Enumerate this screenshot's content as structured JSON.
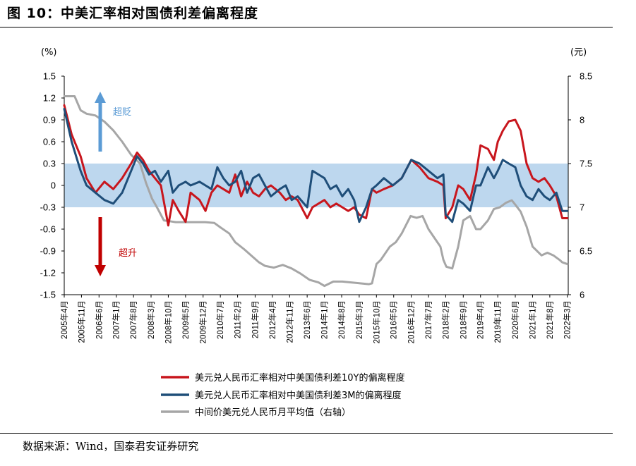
{
  "figure": {
    "title": "图 10：中美汇率相对国债利差偏离程度",
    "source": "数据来源：Wind，国泰君安证券研究"
  },
  "chart_data": {
    "type": "line",
    "y_left": {
      "unit": "(%)",
      "lim": [
        -1.5,
        1.5
      ],
      "ticks": [
        "1.5",
        "1.2",
        "0.9",
        "0.6",
        "0.3",
        "0",
        "-0.3",
        "-0.6",
        "-0.9",
        "-1.2",
        "-1.5"
      ]
    },
    "y_right": {
      "unit": "(元)",
      "lim": [
        6,
        8.5
      ],
      "ticks": [
        "8.5",
        "8",
        "7.5",
        "7",
        "6.5",
        "6"
      ]
    },
    "x_range": [
      2005.25,
      2022.2
    ],
    "x_ticks": [
      {
        "x": 2005.25,
        "label": "2005年4月"
      },
      {
        "x": 2005.83,
        "label": "2005年11月"
      },
      {
        "x": 2006.42,
        "label": "2006年6月"
      },
      {
        "x": 2007.0,
        "label": "2007年1月"
      },
      {
        "x": 2007.58,
        "label": "2007年8月"
      },
      {
        "x": 2008.17,
        "label": "2008年3月"
      },
      {
        "x": 2008.75,
        "label": "2008年10月"
      },
      {
        "x": 2009.33,
        "label": "2009年5月"
      },
      {
        "x": 2009.92,
        "label": "2009年12月"
      },
      {
        "x": 2010.5,
        "label": "2010年7月"
      },
      {
        "x": 2011.08,
        "label": "2011年2月"
      },
      {
        "x": 2011.67,
        "label": "2011年9月"
      },
      {
        "x": 2012.25,
        "label": "2012年4月"
      },
      {
        "x": 2012.83,
        "label": "2012年11月"
      },
      {
        "x": 2013.42,
        "label": "2013年6月"
      },
      {
        "x": 2014.0,
        "label": "2014年1月"
      },
      {
        "x": 2014.58,
        "label": "2014年8月"
      },
      {
        "x": 2015.17,
        "label": "2015年3月"
      },
      {
        "x": 2015.75,
        "label": "2015年10月"
      },
      {
        "x": 2016.33,
        "label": "2016年5月"
      },
      {
        "x": 2016.92,
        "label": "2016年12月"
      },
      {
        "x": 2017.5,
        "label": "2017年7月"
      },
      {
        "x": 2018.08,
        "label": "2018年2月"
      },
      {
        "x": 2018.67,
        "label": "2018年9月"
      },
      {
        "x": 2019.25,
        "label": "2019年4月"
      },
      {
        "x": 2019.83,
        "label": "2019年11月"
      },
      {
        "x": 2020.42,
        "label": "2020年6月"
      },
      {
        "x": 2021.0,
        "label": "2021年1月"
      },
      {
        "x": 2021.58,
        "label": "2021年8月"
      },
      {
        "x": 2022.17,
        "label": "2022年3月"
      }
    ],
    "band": [
      -0.3,
      0.3
    ],
    "annotations": {
      "up": "超贬",
      "down": "超升"
    },
    "colors": {
      "red": "#c8161d",
      "blue": "#1f4e79",
      "gray": "#a6a6a6",
      "band": "#bdd7ee",
      "arrow_up": "#5b9bd5",
      "arrow_down": "#c00000"
    },
    "series": [
      {
        "name": "美元兑人民币汇率相对中美国债利差10Y的偏离程度",
        "axis": "left",
        "color_key": "red",
        "x": [
          2005.25,
          2005.5,
          2005.8,
          2006.0,
          2006.3,
          2006.6,
          2006.9,
          2007.2,
          2007.5,
          2007.7,
          2007.9,
          2008.1,
          2008.3,
          2008.5,
          2008.75,
          2008.9,
          2009.1,
          2009.33,
          2009.5,
          2009.8,
          2010.0,
          2010.2,
          2010.4,
          2010.6,
          2010.8,
          2011.0,
          2011.2,
          2011.4,
          2011.6,
          2011.8,
          2012.0,
          2012.2,
          2012.5,
          2012.7,
          2012.9,
          2013.1,
          2013.42,
          2013.6,
          2013.8,
          2014.0,
          2014.2,
          2014.4,
          2014.6,
          2014.8,
          2015.0,
          2015.17,
          2015.4,
          2015.6,
          2015.75,
          2016.0,
          2016.3,
          2016.6,
          2016.92,
          2017.2,
          2017.5,
          2017.8,
          2018.0,
          2018.08,
          2018.3,
          2018.5,
          2018.67,
          2018.9,
          2019.1,
          2019.25,
          2019.5,
          2019.7,
          2019.83,
          2020.0,
          2020.2,
          2020.42,
          2020.6,
          2020.8,
          2021.0,
          2021.2,
          2021.4,
          2021.58,
          2021.8,
          2022.0,
          2022.17
        ],
        "y": [
          1.1,
          0.7,
          0.4,
          0.1,
          -0.1,
          0.05,
          -0.05,
          0.1,
          0.3,
          0.45,
          0.35,
          0.2,
          0.1,
          0.0,
          -0.55,
          -0.2,
          -0.35,
          -0.5,
          -0.1,
          -0.2,
          -0.35,
          -0.1,
          0.0,
          -0.05,
          -0.1,
          0.15,
          -0.15,
          0.05,
          -0.1,
          -0.15,
          -0.05,
          0.0,
          -0.1,
          -0.2,
          -0.15,
          -0.2,
          -0.45,
          -0.3,
          -0.25,
          -0.2,
          -0.3,
          -0.25,
          -0.3,
          -0.35,
          -0.3,
          -0.4,
          -0.45,
          -0.05,
          -0.1,
          -0.05,
          0.0,
          0.1,
          0.35,
          0.25,
          0.1,
          0.05,
          0.0,
          -0.45,
          -0.3,
          0.0,
          -0.05,
          -0.2,
          0.15,
          0.55,
          0.5,
          0.35,
          0.6,
          0.75,
          0.88,
          0.9,
          0.75,
          0.3,
          0.1,
          0.05,
          0.1,
          0.0,
          -0.15,
          -0.45,
          -0.45
        ]
      },
      {
        "name": "美元兑人民币汇率相对中美国债利差3M的偏离程度",
        "axis": "left",
        "color_key": "blue",
        "x": [
          2005.25,
          2005.5,
          2005.8,
          2006.0,
          2006.3,
          2006.6,
          2006.9,
          2007.2,
          2007.5,
          2007.7,
          2007.9,
          2008.1,
          2008.3,
          2008.5,
          2008.75,
          2008.9,
          2009.1,
          2009.33,
          2009.5,
          2009.8,
          2010.0,
          2010.2,
          2010.4,
          2010.6,
          2010.8,
          2011.0,
          2011.2,
          2011.4,
          2011.6,
          2011.8,
          2012.0,
          2012.2,
          2012.5,
          2012.7,
          2012.9,
          2013.1,
          2013.42,
          2013.6,
          2013.8,
          2014.0,
          2014.2,
          2014.4,
          2014.6,
          2014.8,
          2015.0,
          2015.17,
          2015.4,
          2015.6,
          2015.75,
          2016.0,
          2016.3,
          2016.6,
          2016.92,
          2017.2,
          2017.5,
          2017.8,
          2018.0,
          2018.08,
          2018.3,
          2018.5,
          2018.67,
          2018.9,
          2019.1,
          2019.25,
          2019.5,
          2019.7,
          2019.83,
          2020.0,
          2020.2,
          2020.42,
          2020.6,
          2020.8,
          2021.0,
          2021.2,
          2021.4,
          2021.58,
          2021.8,
          2022.0,
          2022.17
        ],
        "y": [
          1.05,
          0.6,
          0.2,
          0.0,
          -0.1,
          -0.2,
          -0.25,
          -0.1,
          0.2,
          0.4,
          0.3,
          0.15,
          0.2,
          0.05,
          0.2,
          -0.1,
          0.0,
          0.05,
          0.0,
          0.05,
          0.0,
          -0.05,
          0.25,
          0.1,
          0.0,
          0.05,
          0.2,
          -0.1,
          0.1,
          0.15,
          0.0,
          -0.15,
          -0.05,
          0.0,
          -0.2,
          -0.15,
          -0.3,
          0.2,
          0.15,
          0.1,
          -0.05,
          0.0,
          -0.15,
          -0.05,
          -0.2,
          -0.5,
          -0.3,
          -0.05,
          0.0,
          0.1,
          0.0,
          0.1,
          0.35,
          0.3,
          0.2,
          0.1,
          0.15,
          -0.4,
          -0.5,
          -0.2,
          -0.25,
          -0.35,
          0.0,
          0.0,
          0.25,
          0.1,
          0.2,
          0.35,
          0.3,
          0.25,
          0.0,
          -0.15,
          -0.2,
          -0.05,
          -0.15,
          -0.2,
          -0.1,
          -0.35,
          -0.35
        ]
      },
      {
        "name": "中间价美元兑人民币月平均值（右轴）",
        "axis": "right",
        "color_key": "gray",
        "x": [
          2005.25,
          2005.6,
          2005.8,
          2006.0,
          2006.3,
          2006.6,
          2006.9,
          2007.2,
          2007.5,
          2007.8,
          2008.0,
          2008.2,
          2008.4,
          2008.6,
          2008.8,
          2009.0,
          2009.5,
          2010.0,
          2010.3,
          2010.5,
          2010.8,
          2011.0,
          2011.3,
          2011.5,
          2011.8,
          2012.0,
          2012.3,
          2012.6,
          2012.9,
          2013.2,
          2013.5,
          2013.8,
          2014.0,
          2014.3,
          2014.6,
          2014.9,
          2015.2,
          2015.5,
          2015.6,
          2015.75,
          2015.9,
          2016.2,
          2016.4,
          2016.6,
          2016.9,
          2017.1,
          2017.3,
          2017.5,
          2017.7,
          2017.9,
          2018.0,
          2018.1,
          2018.3,
          2018.5,
          2018.67,
          2018.9,
          2019.1,
          2019.25,
          2019.5,
          2019.7,
          2019.9,
          2020.1,
          2020.3,
          2020.42,
          2020.6,
          2020.8,
          2021.0,
          2021.3,
          2021.5,
          2021.7,
          2021.9,
          2022.0,
          2022.17
        ],
        "y": [
          8.27,
          8.27,
          8.11,
          8.07,
          8.05,
          7.98,
          7.88,
          7.75,
          7.6,
          7.5,
          7.28,
          7.1,
          6.98,
          6.85,
          6.84,
          6.83,
          6.83,
          6.83,
          6.82,
          6.77,
          6.7,
          6.6,
          6.52,
          6.46,
          6.37,
          6.33,
          6.31,
          6.34,
          6.3,
          6.24,
          6.17,
          6.14,
          6.1,
          6.15,
          6.15,
          6.14,
          6.13,
          6.12,
          6.13,
          6.35,
          6.4,
          6.55,
          6.6,
          6.7,
          6.9,
          6.88,
          6.9,
          6.75,
          6.65,
          6.55,
          6.4,
          6.32,
          6.3,
          6.55,
          6.85,
          6.9,
          6.75,
          6.75,
          6.85,
          6.98,
          7.0,
          7.05,
          7.08,
          7.03,
          6.95,
          6.78,
          6.55,
          6.45,
          6.48,
          6.45,
          6.4,
          6.37,
          6.35
        ]
      }
    ],
    "legend_labels": [
      "美元兑人民币汇率相对中美国债利差10Y的偏离程度",
      "美元兑人民币汇率相对中美国债利差3M的偏离程度",
      "中间价美元兑人民币月平均值（右轴）"
    ]
  }
}
